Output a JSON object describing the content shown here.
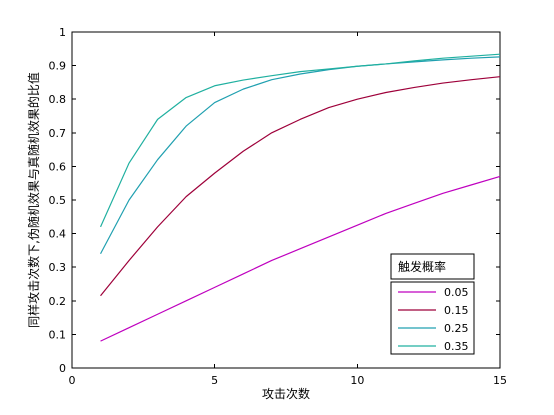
{
  "chart_data": {
    "type": "line",
    "title": "",
    "xlabel": "攻击次数",
    "ylabel": "同样攻击次数下,伪随机效果与真随机效果的比值",
    "xlim": [
      0,
      15
    ],
    "ylim": [
      0,
      1
    ],
    "xticks": [
      0,
      5,
      10,
      15
    ],
    "yticks": [
      0,
      0.1,
      0.2,
      0.3,
      0.4,
      0.5,
      0.6,
      0.7,
      0.8,
      0.9,
      1
    ],
    "xtick_labels": [
      "0",
      "5",
      "10",
      "15"
    ],
    "ytick_labels": [
      "0",
      "0.1",
      "0.2",
      "0.3",
      "0.4",
      "0.5",
      "0.6",
      "0.7",
      "0.8",
      "0.9",
      "1"
    ],
    "grid": false,
    "legend": {
      "title": "触发概率",
      "placement": "bottom-right"
    },
    "x": [
      1,
      2,
      3,
      4,
      5,
      6,
      7,
      8,
      9,
      10,
      11,
      12,
      13,
      14,
      15
    ],
    "series": [
      {
        "name": "0.05",
        "color": "#bf00bf",
        "values": [
          0.08,
          0.12,
          0.16,
          0.2,
          0.24,
          0.28,
          0.32,
          0.355,
          0.39,
          0.425,
          0.46,
          0.49,
          0.52,
          0.545,
          0.57
        ]
      },
      {
        "name": "0.15",
        "color": "#9e003a",
        "values": [
          0.215,
          0.32,
          0.42,
          0.51,
          0.58,
          0.645,
          0.7,
          0.74,
          0.775,
          0.8,
          0.82,
          0.835,
          0.848,
          0.858,
          0.867
        ]
      },
      {
        "name": "0.25",
        "color": "#20a0b0",
        "values": [
          0.34,
          0.5,
          0.62,
          0.72,
          0.79,
          0.83,
          0.858,
          0.875,
          0.888,
          0.898,
          0.905,
          0.911,
          0.917,
          0.922,
          0.926
        ]
      },
      {
        "name": "0.35",
        "color": "#20b0a0",
        "values": [
          0.42,
          0.61,
          0.74,
          0.805,
          0.84,
          0.857,
          0.87,
          0.882,
          0.89,
          0.898,
          0.905,
          0.914,
          0.922,
          0.928,
          0.934
        ]
      }
    ]
  }
}
